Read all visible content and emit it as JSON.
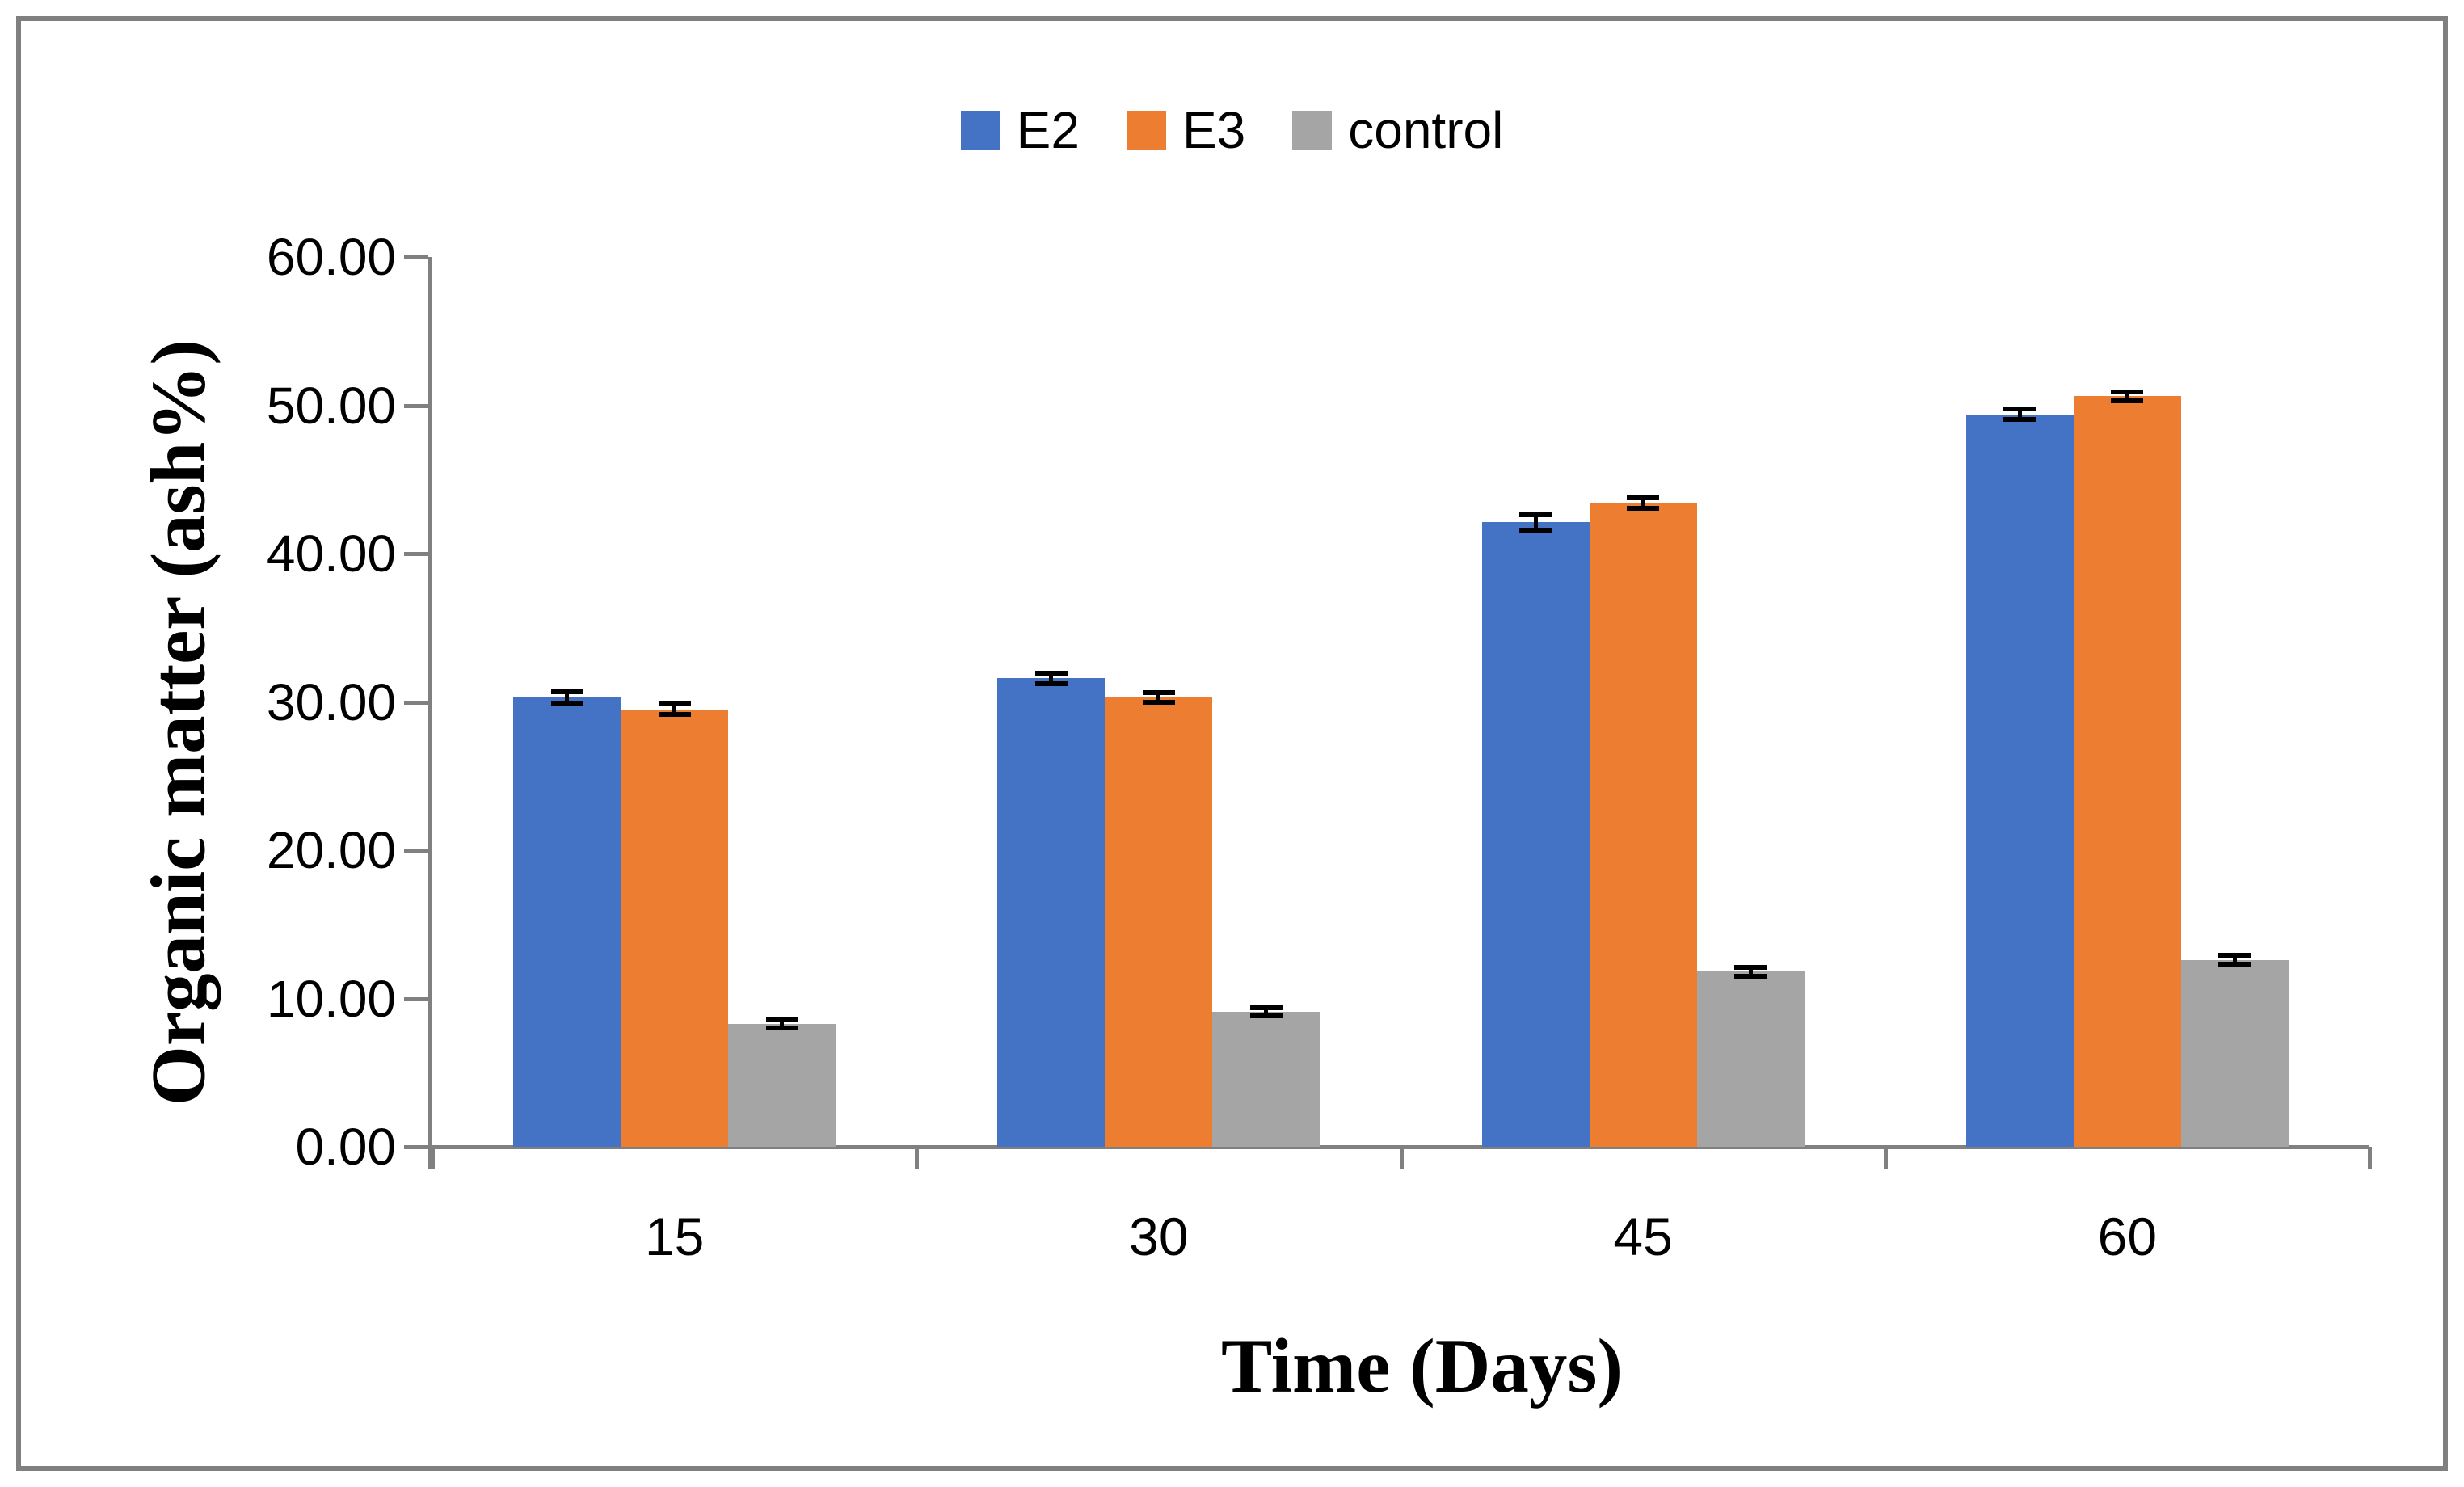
{
  "chart_data": {
    "type": "bar",
    "title": "",
    "categories": [
      "15",
      "30",
      "45",
      "60"
    ],
    "series": [
      {
        "name": "E2",
        "color": "#4472C4",
        "values": [
          30.3,
          31.6,
          42.1,
          49.4
        ],
        "errors": [
          0.4,
          0.35,
          0.5,
          0.35
        ]
      },
      {
        "name": "E3",
        "color": "#ED7D31",
        "values": [
          29.5,
          30.3,
          43.4,
          50.6
        ],
        "errors": [
          0.35,
          0.3,
          0.35,
          0.3
        ]
      },
      {
        "name": "control",
        "color": "#A5A5A5",
        "values": [
          8.3,
          9.1,
          11.8,
          12.6
        ],
        "errors": [
          0.3,
          0.25,
          0.3,
          0.3
        ]
      }
    ],
    "xlabel": "Time (Days)",
    "ylabel": "Organic matter (ash%)",
    "ylim": [
      0,
      60
    ],
    "ytick_step": 10,
    "ytick_labels": [
      "0.00",
      "10.00",
      "20.00",
      "30.00",
      "40.00",
      "50.00",
      "60.00"
    ],
    "grid": false,
    "legend_position": "top-center",
    "error_bar_color": "#000000",
    "axis_color": "#808080",
    "frame_border_color": "#808080"
  }
}
